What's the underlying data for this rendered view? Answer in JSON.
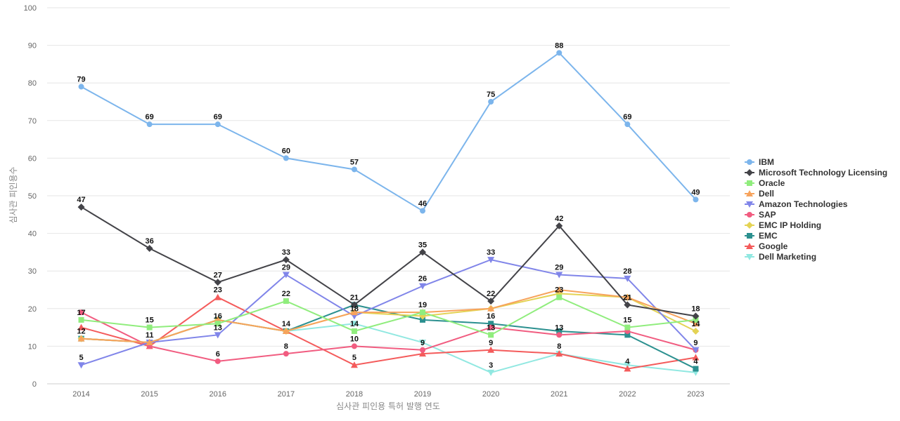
{
  "chart_data": {
    "type": "line",
    "title": "",
    "xlabel": "심사관 피인용 특허 발행 연도",
    "ylabel": "심사관 피인용수",
    "x": [
      "2014",
      "2015",
      "2016",
      "2017",
      "2018",
      "2019",
      "2020",
      "2021",
      "2022",
      "2023"
    ],
    "ylim": [
      0,
      100
    ],
    "yticks": [
      0,
      10,
      20,
      30,
      40,
      50,
      60,
      70,
      80,
      90,
      100
    ],
    "grid": true,
    "legend": "right",
    "series": [
      {
        "name": "IBM",
        "color": "#7cb5ec",
        "marker": "circle",
        "values": [
          79,
          69,
          69,
          60,
          57,
          46,
          75,
          88,
          69,
          49
        ],
        "labels": true
      },
      {
        "name": "Microsoft Technology Licensing",
        "color": "#434348",
        "marker": "diamond",
        "values": [
          47,
          36,
          27,
          33,
          21,
          35,
          22,
          42,
          21,
          18
        ],
        "labels": true
      },
      {
        "name": "Oracle",
        "color": "#90ed7d",
        "marker": "square",
        "values": [
          17,
          15,
          16,
          22,
          14,
          19,
          13,
          23,
          15,
          17
        ],
        "labels": false
      },
      {
        "name": "Dell",
        "color": "#f7a35c",
        "marker": "triangle",
        "values": [
          12,
          11,
          17,
          14,
          19,
          19,
          20,
          25,
          23,
          16
        ],
        "labels": false
      },
      {
        "name": "Amazon Technologies",
        "color": "#8085e9",
        "marker": "triangle-down",
        "values": [
          5,
          11,
          13,
          29,
          18,
          26,
          33,
          29,
          28,
          9
        ],
        "labels": false
      },
      {
        "name": "SAP",
        "color": "#f15c80",
        "marker": "circle",
        "values": [
          19,
          10,
          6,
          8,
          10,
          9,
          15,
          13,
          14,
          9
        ],
        "labels": false
      },
      {
        "name": "EMC IP Holding",
        "color": "#e4d354",
        "marker": "diamond",
        "values": [
          12,
          11,
          17,
          14,
          19,
          18,
          20,
          24,
          23,
          14
        ],
        "labels": false
      },
      {
        "name": "EMC",
        "color": "#2b908f",
        "marker": "square",
        "values": [
          12,
          11,
          17,
          14,
          21,
          17,
          16,
          14,
          13,
          4
        ],
        "labels": false
      },
      {
        "name": "Google",
        "color": "#f45b5b",
        "marker": "triangle",
        "values": [
          15,
          10,
          23,
          14,
          5,
          8,
          9,
          8,
          4,
          7
        ],
        "labels": false
      },
      {
        "name": "Dell Marketing",
        "color": "#91e8e1",
        "marker": "triangle-down",
        "values": [
          12,
          11,
          17,
          14,
          16,
          11,
          3,
          8,
          5,
          3
        ],
        "labels": false
      }
    ],
    "data_labels": [
      {
        "x": "2014",
        "value": "79"
      },
      {
        "x": "2015",
        "value": "69"
      },
      {
        "x": "2016",
        "value": "69"
      },
      {
        "x": "2017",
        "value": "60"
      },
      {
        "x": "2018",
        "value": "57"
      },
      {
        "x": "2019",
        "value": "46"
      },
      {
        "x": "2020",
        "value": "75"
      },
      {
        "x": "2021",
        "value": "88"
      },
      {
        "x": "2022",
        "value": "69"
      },
      {
        "x": "2023",
        "value": "49"
      },
      {
        "x": "2014",
        "value": "47"
      },
      {
        "x": "2015",
        "value": "36"
      },
      {
        "x": "2016",
        "value": "27"
      },
      {
        "x": "2017",
        "value": "33"
      },
      {
        "x": "2018",
        "value": "21"
      },
      {
        "x": "2019",
        "value": "35"
      },
      {
        "x": "2020",
        "value": "22"
      },
      {
        "x": "2021",
        "value": "42"
      },
      {
        "x": "2022",
        "value": "21"
      },
      {
        "x": "2023",
        "value": "18"
      },
      {
        "x": "2017",
        "value": "29"
      },
      {
        "x": "2019",
        "value": "26"
      },
      {
        "x": "2020",
        "value": "33"
      },
      {
        "x": "2021",
        "value": "29"
      },
      {
        "x": "2022",
        "value": "28"
      },
      {
        "x": "2014",
        "value": "17"
      },
      {
        "x": "2014",
        "value": "12"
      },
      {
        "x": "2014",
        "value": "5"
      },
      {
        "x": "2015",
        "value": "15"
      },
      {
        "x": "2015",
        "value": "11"
      },
      {
        "x": "2016",
        "value": "23"
      },
      {
        "x": "2016",
        "value": "16"
      },
      {
        "x": "2016",
        "value": "13"
      },
      {
        "x": "2016",
        "value": "6"
      },
      {
        "x": "2017",
        "value": "22"
      },
      {
        "x": "2017",
        "value": "14"
      },
      {
        "x": "2017",
        "value": "8"
      },
      {
        "x": "2018",
        "value": "18"
      },
      {
        "x": "2018",
        "value": "14"
      },
      {
        "x": "2018",
        "value": "10"
      },
      {
        "x": "2018",
        "value": "5"
      },
      {
        "x": "2019",
        "value": "19"
      },
      {
        "x": "2019",
        "value": "9"
      },
      {
        "x": "2020",
        "value": "16"
      },
      {
        "x": "2020",
        "value": "13"
      },
      {
        "x": "2020",
        "value": "9"
      },
      {
        "x": "2020",
        "value": "3"
      },
      {
        "x": "2021",
        "value": "23"
      },
      {
        "x": "2021",
        "value": "13"
      },
      {
        "x": "2021",
        "value": "8"
      },
      {
        "x": "2022",
        "value": "21"
      },
      {
        "x": "2022",
        "value": "15"
      },
      {
        "x": "2022",
        "value": "4"
      },
      {
        "x": "2023",
        "value": "14"
      },
      {
        "x": "2023",
        "value": "9"
      },
      {
        "x": "2023",
        "value": "4"
      }
    ]
  }
}
